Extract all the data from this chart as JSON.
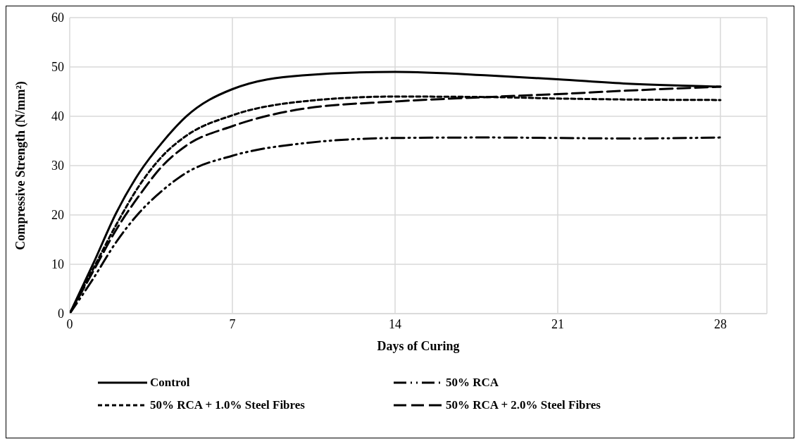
{
  "chart_data": {
    "type": "line",
    "xlabel": "Days of Curing",
    "ylabel": "Compressive Strength (N/mm²)",
    "x": [
      0,
      1,
      2,
      3,
      4,
      5,
      7,
      10,
      14,
      18,
      21,
      24,
      28
    ],
    "xlim": [
      0,
      30
    ],
    "xticks": [
      0,
      7,
      14,
      21,
      28
    ],
    "ylim": [
      0,
      60
    ],
    "yticks": [
      0,
      10,
      20,
      30,
      40,
      50,
      60
    ],
    "grid": true,
    "legend": "bottom",
    "marker": "none",
    "series": [
      {
        "name": "Control",
        "color": "#000000",
        "line_style": "solid",
        "values": [
          0,
          10,
          20.4,
          28.6,
          34.8,
          39.9,
          45.5,
          48.3,
          49,
          48.3,
          47.5,
          46.6,
          46
        ]
      },
      {
        "name": "50% RCA",
        "color": "#000000",
        "line_style": "dashdotdot",
        "values": [
          0,
          7,
          14.5,
          20.5,
          25,
          28.5,
          32,
          34.5,
          35.6,
          35.7,
          35.6,
          35.5,
          35.7
        ]
      },
      {
        "name": "50% RCA + 1.0% Steel Fibres",
        "color": "#000000",
        "line_style": "dashed",
        "values": [
          0,
          9,
          18,
          26,
          32,
          36,
          40.2,
          43,
          44,
          43.9,
          43.6,
          43.4,
          43.3
        ]
      },
      {
        "name": "50% RCA + 2.0% Steel Fibres",
        "color": "#000000",
        "line_style": "longdash",
        "values": [
          0,
          8.5,
          17,
          24,
          30,
          34,
          38,
          41.5,
          43,
          43.9,
          44.5,
          45.2,
          46
        ]
      }
    ]
  }
}
